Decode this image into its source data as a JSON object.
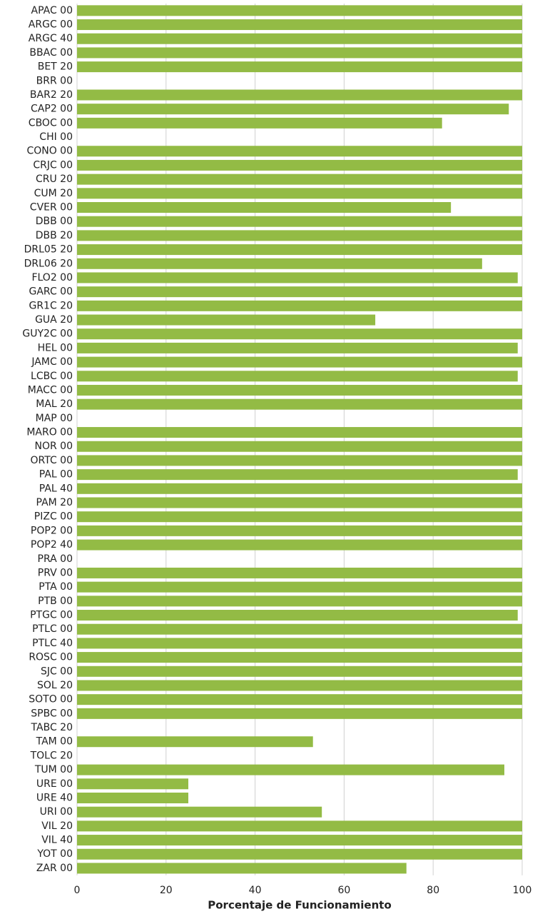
{
  "chart_data": {
    "type": "barh",
    "xlabel": "Porcentaje de Funcionamiento",
    "categories": [
      "APAC 00",
      "ARGC 00",
      "ARGC 40",
      "BBAC 00",
      "BET 20",
      "BRR 00",
      "BAR2 20",
      "CAP2 00",
      "CBOC 00",
      "CHI 00",
      "CONO 00",
      "CRJC 00",
      "CRU 20",
      "CUM 20",
      "CVER 00",
      "DBB 00",
      "DBB 20",
      "DRL05 20",
      "DRL06 20",
      "FLO2 00",
      "GARC 00",
      "GR1C 20",
      "GUA 20",
      "GUY2C 00",
      "HEL 00",
      "JAMC 00",
      "LCBC 00",
      "MACC 00",
      "MAL 20",
      "MAP 00",
      "MARO 00",
      "NOR 00",
      "ORTC 00",
      "PAL 00",
      "PAL 40",
      "PAM 20",
      "PIZC 00",
      "POP2 00",
      "POP2 40",
      "PRA 00",
      "PRV 00",
      "PTA 00",
      "PTB 00",
      "PTGC 00",
      "PTLC 00",
      "PTLC 40",
      "ROSC 00",
      "SJC 00",
      "SOL 20",
      "SOTO 00",
      "SPBC 00",
      "TABC 20",
      "TAM 00",
      "TOLC 20",
      "TUM 00",
      "URE 00",
      "URE 40",
      "URI 00",
      "VIL 20",
      "VIL 40",
      "YOT 00",
      "ZAR 00"
    ],
    "values": [
      100,
      100,
      100,
      100,
      100,
      0,
      100,
      97,
      82,
      0,
      100,
      100,
      100,
      100,
      84,
      100,
      100,
      100,
      91,
      99,
      100,
      100,
      67,
      100,
      99,
      100,
      99,
      100,
      100,
      0,
      100,
      100,
      100,
      99,
      100,
      100,
      100,
      100,
      100,
      0,
      100,
      100,
      100,
      99,
      100,
      100,
      100,
      100,
      100,
      100,
      100,
      0,
      53,
      0,
      96,
      25,
      25,
      55,
      100,
      100,
      100,
      74
    ],
    "color": "#93bb45",
    "xlim": [
      0,
      100
    ],
    "xticks": [
      0,
      20,
      40,
      60,
      80,
      100
    ],
    "grid": true
  }
}
